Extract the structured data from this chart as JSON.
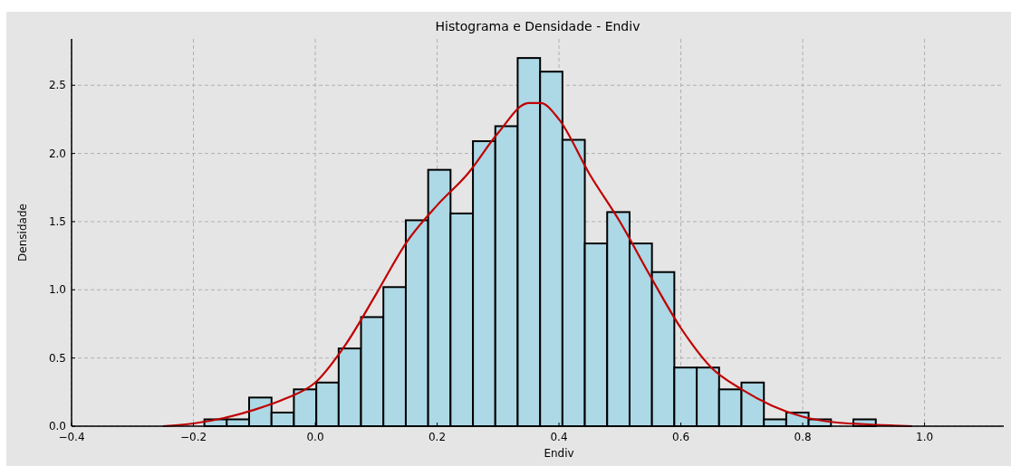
{
  "chart_data": {
    "type": "histogram",
    "title": "Histograma e Densidade - Endiv",
    "xlabel": "Endiv",
    "ylabel": "Densidade",
    "xlim": [
      -0.4,
      1.13
    ],
    "ylim": [
      0,
      2.84
    ],
    "xticks": [
      {
        "value": -0.4,
        "label": "−0.4"
      },
      {
        "value": -0.2,
        "label": "−0.2"
      },
      {
        "value": 0,
        "label": "0.0"
      },
      {
        "value": 0.2,
        "label": "0.2"
      },
      {
        "value": 0.4,
        "label": "0.4"
      },
      {
        "value": 0.6,
        "label": "0.6"
      },
      {
        "value": 0.8,
        "label": "0.8"
      },
      {
        "value": 1,
        "label": "1.0"
      }
    ],
    "yticks": [
      {
        "value": 0,
        "label": "0.0"
      },
      {
        "value": 0.5,
        "label": "0.5"
      },
      {
        "value": 1,
        "label": "1.0"
      },
      {
        "value": 1.5,
        "label": "1.5"
      },
      {
        "value": 2,
        "label": "2.0"
      },
      {
        "value": 2.5,
        "label": "2.5"
      }
    ],
    "grid": true,
    "series": [
      {
        "color": "#add8e6",
        "bins": [
          -0.182,
          -0.1453,
          -0.1086,
          -0.0718,
          -0.0351,
          0.0017,
          0.0384,
          0.0751,
          0.1118,
          0.1486,
          0.1853,
          0.222,
          0.2588,
          0.2955,
          0.3322,
          0.369,
          0.4057,
          0.4424,
          0.4791,
          0.5159,
          0.5526,
          0.5893,
          0.6261,
          0.6628,
          0.6995,
          0.7363,
          0.773,
          0.8097,
          0.8464,
          0.8832,
          0.92
        ],
        "values": [
          0.05,
          0.05,
          0.21,
          0.1,
          0.27,
          0.32,
          0.57,
          0.8,
          1.02,
          1.51,
          1.88,
          1.56,
          2.09,
          2.2,
          2.7,
          2.6,
          2.1,
          1.34,
          1.57,
          1.34,
          1.13,
          0.43,
          0.43,
          0.27,
          0.32,
          0.05,
          0.1,
          0.05,
          0,
          0.05
        ]
      },
      {
        "type": "line",
        "color": "#c00000",
        "x": [
          -0.25,
          -0.2,
          -0.15,
          -0.1,
          -0.05,
          0,
          0.05,
          0.1,
          0.15,
          0.2,
          0.25,
          0.3,
          0.35,
          0.37,
          0.4,
          0.45,
          0.5,
          0.55,
          0.6,
          0.65,
          0.7,
          0.75,
          0.8,
          0.85,
          0.9,
          0.95,
          0.98
        ],
        "values": [
          0,
          0.02,
          0.06,
          0.12,
          0.2,
          0.32,
          0.6,
          0.97,
          1.35,
          1.62,
          1.85,
          2.15,
          2.37,
          2.37,
          2.25,
          1.85,
          1.5,
          1.1,
          0.72,
          0.43,
          0.27,
          0.15,
          0.07,
          0.03,
          0.015,
          0.005,
          0
        ]
      }
    ]
  }
}
